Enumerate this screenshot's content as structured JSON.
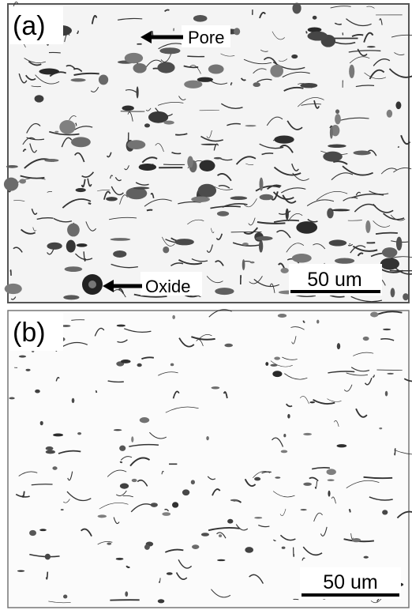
{
  "panels": [
    {
      "label": "(a)",
      "annotations": [
        {
          "text": "Pore"
        },
        {
          "text": "Oxide"
        }
      ],
      "scale_bar": "50 um"
    },
    {
      "label": "(b)",
      "scale_bar": "50 um"
    }
  ]
}
